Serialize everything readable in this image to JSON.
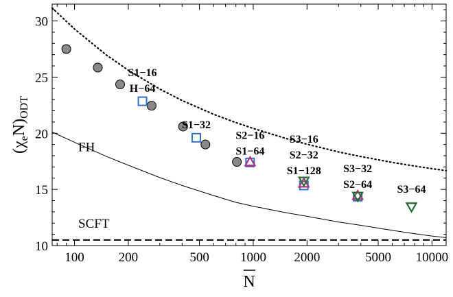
{
  "chart_data": {
    "type": "scatter",
    "title": "",
    "xscale": "log",
    "xlim": [
      75,
      12000
    ],
    "ylim": [
      10,
      31.5
    ],
    "grid": false,
    "xlabel": "N",
    "ylabel_main": "(χ",
    "ylabel_sub1": "e",
    "ylabel_mid": "N)",
    "ylabel_sub2": "ODT",
    "xticks": [
      100,
      200,
      500,
      1000,
      2000,
      5000,
      10000
    ],
    "xtick_labels": [
      "100",
      "200",
      "500",
      "1000",
      "2000",
      "5000",
      "10000"
    ],
    "yticks": [
      10,
      15,
      20,
      25,
      30
    ],
    "ytick_labels": [
      "10",
      "15",
      "20",
      "25",
      "30"
    ],
    "series": [
      {
        "marker": "circle",
        "color": "#888888",
        "points": [
          [
            90,
            27.5
          ],
          [
            135,
            25.85
          ],
          [
            180,
            24.35
          ],
          [
            270,
            22.45
          ],
          [
            405,
            20.6
          ],
          [
            540,
            19.0
          ],
          [
            810,
            17.45
          ]
        ]
      },
      {
        "marker": "square",
        "color": "#2f6fd0",
        "points": [
          [
            240,
            22.85
          ],
          [
            480,
            19.6
          ],
          [
            960,
            17.4
          ],
          [
            1920,
            15.35
          ],
          [
            3840,
            14.35
          ]
        ]
      },
      {
        "marker": "triangle-up",
        "color": "#b0307a",
        "points": [
          [
            960,
            17.45
          ],
          [
            1920,
            15.55
          ],
          [
            3840,
            14.45
          ]
        ]
      },
      {
        "marker": "triangle-down",
        "color": "#1e6e2e",
        "points": [
          [
            1920,
            15.75
          ],
          [
            3840,
            14.4
          ],
          [
            7680,
            13.45
          ]
        ]
      }
    ],
    "curves": [
      {
        "name": "fit",
        "style": "dotted",
        "x": [
          75,
          100,
          150,
          200,
          300,
          400,
          600,
          800,
          1000,
          1500,
          2000,
          3000,
          4000,
          6000,
          8000,
          10000,
          12000
        ],
        "y": [
          31.15,
          29.29,
          26.99,
          25.61,
          23.93,
          22.92,
          21.69,
          20.95,
          20.43,
          19.57,
          19.02,
          18.34,
          17.93,
          17.4,
          17.08,
          16.85,
          16.67
        ]
      },
      {
        "name": "FH",
        "style": "solid",
        "x": [
          75,
          100,
          150,
          200,
          300,
          400,
          600,
          800,
          1000,
          1500,
          2000,
          3000,
          4000,
          6000,
          8000,
          10000,
          12000
        ],
        "y": [
          20.1,
          19.2,
          17.95,
          17.15,
          16.05,
          15.35,
          14.45,
          13.85,
          13.5,
          12.95,
          12.6,
          12.1,
          11.8,
          11.35,
          11.05,
          10.85,
          10.7
        ]
      },
      {
        "name": "SCFT",
        "style": "dashed",
        "x": [
          75,
          12000
        ],
        "y": [
          10.495,
          10.495
        ]
      }
    ],
    "curve_labels": [
      {
        "text": "FH",
        "x": 105,
        "y": 18.4
      },
      {
        "text": "SCFT",
        "x": 105,
        "y": 11.6
      }
    ],
    "annotations": [
      {
        "lines": [
          "S1−16",
          "H−64"
        ],
        "x": 240,
        "y": 25.1
      },
      {
        "lines": [
          "S1−32"
        ],
        "x": 480,
        "y": 20.45
      },
      {
        "lines": [
          "S2−16",
          "S1−64"
        ],
        "x": 960,
        "y": 19.5
      },
      {
        "lines": [
          "S3−16",
          "S2−32",
          "S1−128"
        ],
        "x": 1920,
        "y": 19.15
      },
      {
        "lines": [
          "S3−32",
          "S2−64"
        ],
        "x": 3840,
        "y": 16.55
      },
      {
        "lines": [
          "S3−64"
        ],
        "x": 7680,
        "y": 14.7
      }
    ]
  }
}
